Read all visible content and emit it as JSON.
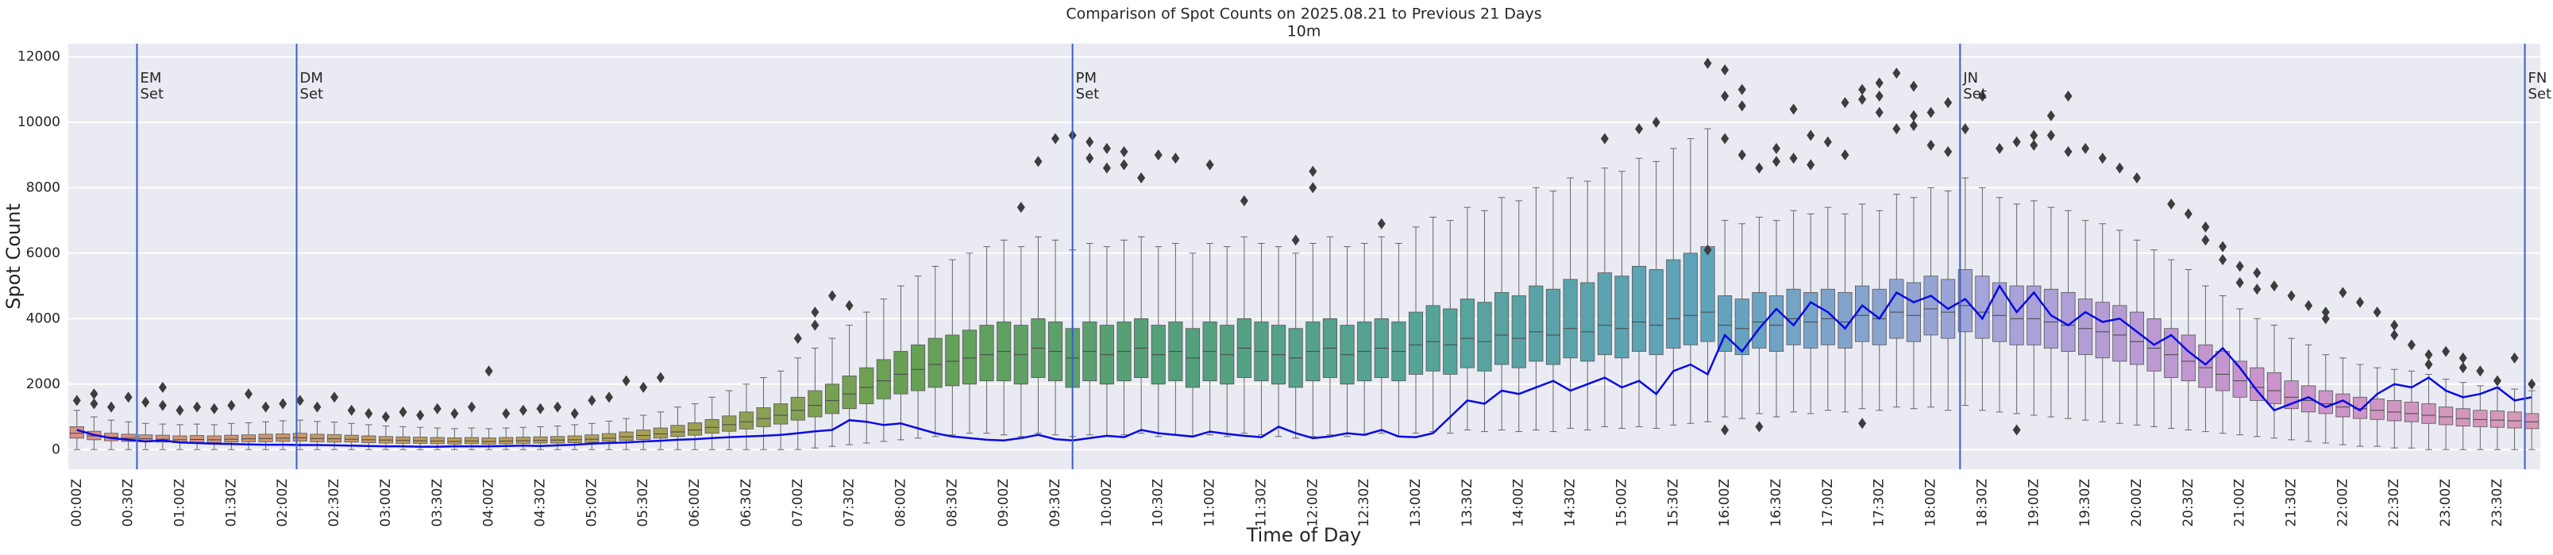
{
  "chart_data": {
    "type": "box",
    "title": "Comparison of Spot Counts on 2025.08.21 to Previous 21 Days",
    "subtitle": "10m",
    "x_label": "Time of Day",
    "y_label": "Spot Count",
    "ylim": [
      -600,
      12400
    ],
    "yticks": [
      0,
      2000,
      4000,
      6000,
      8000,
      10000,
      12000
    ],
    "grid": true,
    "categories": [
      "00:00Z",
      null,
      null,
      "00:30Z",
      null,
      null,
      "01:00Z",
      null,
      null,
      "01:30Z",
      null,
      null,
      "02:00Z",
      null,
      null,
      "02:30Z",
      null,
      null,
      "03:00Z",
      null,
      null,
      "03:30Z",
      null,
      null,
      "04:00Z",
      null,
      null,
      "04:30Z",
      null,
      null,
      "05:00Z",
      null,
      null,
      "05:30Z",
      null,
      null,
      "06:00Z",
      null,
      null,
      "06:30Z",
      null,
      null,
      "07:00Z",
      null,
      null,
      "07:30Z",
      null,
      null,
      "08:00Z",
      null,
      null,
      "08:30Z",
      null,
      null,
      "09:00Z",
      null,
      null,
      "09:30Z",
      null,
      null,
      "10:00Z",
      null,
      null,
      "10:30Z",
      null,
      null,
      "11:00Z",
      null,
      null,
      "11:30Z",
      null,
      null,
      "12:00Z",
      null,
      null,
      "12:30Z",
      null,
      null,
      "13:00Z",
      null,
      null,
      "13:30Z",
      null,
      null,
      "14:00Z",
      null,
      null,
      "14:30Z",
      null,
      null,
      "15:00Z",
      null,
      null,
      "15:30Z",
      null,
      null,
      "16:00Z",
      null,
      null,
      "16:30Z",
      null,
      null,
      "17:00Z",
      null,
      null,
      "17:30Z",
      null,
      null,
      "18:00Z",
      null,
      null,
      "18:30Z",
      null,
      null,
      "19:00Z",
      null,
      null,
      "19:30Z",
      null,
      null,
      "20:00Z",
      null,
      null,
      "20:30Z",
      null,
      null,
      "21:00Z",
      null,
      null,
      "21:30Z",
      null,
      null,
      "22:00Z",
      null,
      null,
      "22:30Z",
      null,
      null,
      "23:00Z",
      null,
      null,
      "23:30Z",
      null,
      null
    ],
    "palette": [
      "#d99088",
      "#c49a64",
      "#b0a055",
      "#68a152",
      "#54a07b",
      "#56a39a",
      "#60a3bd",
      "#a4a4da",
      "#c994cc",
      "#d798b8"
    ],
    "boxes": {
      "whislo": [
        0,
        0,
        0,
        0,
        0,
        0,
        0,
        0,
        0,
        0,
        0,
        0,
        0,
        0,
        0,
        0,
        0,
        0,
        0,
        0,
        0,
        0,
        0,
        0,
        0,
        0,
        0,
        0,
        0,
        0,
        0,
        0,
        0,
        0,
        0,
        0,
        0,
        0,
        0,
        0,
        0,
        0,
        0,
        50,
        100,
        150,
        200,
        250,
        300,
        350,
        400,
        450,
        500,
        500,
        450,
        400,
        500,
        450,
        400,
        450,
        400,
        450,
        500,
        400,
        450,
        400,
        450,
        400,
        500,
        450,
        400,
        350,
        400,
        450,
        400,
        450,
        500,
        400,
        500,
        550,
        500,
        600,
        550,
        600,
        550,
        600,
        550,
        650,
        600,
        700,
        650,
        700,
        650,
        750,
        800,
        850,
        1000,
        950,
        1100,
        1000,
        1150,
        1100,
        1200,
        1150,
        1250,
        1200,
        1300,
        1250,
        1300,
        1200,
        1350,
        1200,
        1150,
        1100,
        1050,
        1000,
        950,
        900,
        850,
        800,
        750,
        700,
        650,
        600,
        550,
        500,
        450,
        400,
        350,
        300,
        250,
        200,
        150,
        100,
        100,
        50,
        50,
        0,
        0,
        0,
        0,
        0,
        0,
        0
      ],
      "q1": [
        350,
        300,
        270,
        250,
        240,
        230,
        210,
        220,
        210,
        230,
        240,
        240,
        250,
        260,
        240,
        230,
        230,
        210,
        200,
        190,
        190,
        180,
        170,
        180,
        170,
        180,
        190,
        200,
        200,
        210,
        220,
        250,
        280,
        310,
        350,
        400,
        440,
        500,
        560,
        630,
        700,
        780,
        900,
        1000,
        1100,
        1250,
        1400,
        1550,
        1700,
        1800,
        1900,
        1950,
        2000,
        2100,
        2100,
        2000,
        2200,
        2100,
        1900,
        2100,
        2000,
        2100,
        2200,
        2000,
        2100,
        1900,
        2100,
        2000,
        2200,
        2100,
        2000,
        1900,
        2100,
        2200,
        2000,
        2100,
        2200,
        2100,
        2300,
        2400,
        2300,
        2500,
        2400,
        2600,
        2500,
        2700,
        2600,
        2800,
        2700,
        2900,
        2800,
        3000,
        2900,
        3100,
        3200,
        3300,
        3000,
        2900,
        3100,
        3000,
        3200,
        3100,
        3200,
        3100,
        3300,
        3200,
        3400,
        3300,
        3500,
        3400,
        3600,
        3400,
        3300,
        3200,
        3200,
        3100,
        3000,
        2900,
        2800,
        2700,
        2600,
        2400,
        2200,
        2100,
        1900,
        1800,
        1600,
        1500,
        1400,
        1250,
        1150,
        1100,
        1000,
        950,
        920,
        880,
        850,
        800,
        760,
        720,
        700,
        680,
        660,
        640
      ],
      "med": [
        500,
        420,
        380,
        350,
        330,
        320,
        300,
        310,
        300,
        320,
        330,
        340,
        350,
        360,
        340,
        330,
        320,
        300,
        290,
        280,
        270,
        260,
        250,
        260,
        250,
        260,
        270,
        280,
        290,
        300,
        320,
        350,
        390,
        430,
        480,
        540,
        600,
        680,
        760,
        850,
        950,
        1050,
        1200,
        1350,
        1500,
        1700,
        1900,
        2100,
        2300,
        2450,
        2600,
        2700,
        2800,
        2900,
        3000,
        2900,
        3100,
        3000,
        2800,
        3000,
        2900,
        3000,
        3100,
        2900,
        3000,
        2800,
        3000,
        2900,
        3100,
        3000,
        2900,
        2800,
        3000,
        3100,
        2900,
        3000,
        3100,
        3000,
        3200,
        3300,
        3200,
        3400,
        3300,
        3500,
        3400,
        3600,
        3500,
        3700,
        3600,
        3800,
        3700,
        3900,
        3800,
        4000,
        4100,
        4200,
        3800,
        3700,
        3900,
        3800,
        4000,
        3900,
        4000,
        3900,
        4100,
        4000,
        4200,
        4100,
        4300,
        4200,
        4400,
        4200,
        4100,
        4000,
        4000,
        3900,
        3800,
        3700,
        3600,
        3500,
        3300,
        3100,
        2900,
        2700,
        2500,
        2300,
        2100,
        1900,
        1800,
        1600,
        1500,
        1400,
        1300,
        1250,
        1200,
        1150,
        1100,
        1050,
        1000,
        950,
        920,
        900,
        880,
        850
      ],
      "q3": [
        700,
        560,
        500,
        470,
        450,
        440,
        420,
        430,
        420,
        440,
        450,
        470,
        480,
        500,
        470,
        460,
        440,
        420,
        400,
        390,
        380,
        370,
        360,
        370,
        360,
        370,
        380,
        390,
        400,
        420,
        450,
        490,
        540,
        600,
        660,
        740,
        820,
        920,
        1030,
        1150,
        1280,
        1400,
        1600,
        1800,
        2000,
        2250,
        2500,
        2750,
        3000,
        3200,
        3400,
        3500,
        3650,
        3800,
        3900,
        3800,
        4000,
        3900,
        3700,
        3900,
        3800,
        3900,
        4000,
        3800,
        3900,
        3700,
        3900,
        3800,
        4000,
        3900,
        3800,
        3700,
        3900,
        4000,
        3800,
        3900,
        4000,
        3900,
        4200,
        4400,
        4300,
        4600,
        4500,
        4800,
        4700,
        5000,
        4900,
        5200,
        5100,
        5400,
        5300,
        5600,
        5500,
        5800,
        6000,
        6200,
        4700,
        4600,
        4800,
        4700,
        4900,
        4800,
        4900,
        4800,
        5000,
        4900,
        5200,
        5100,
        5300,
        5200,
        5500,
        5300,
        5100,
        5000,
        5000,
        4900,
        4800,
        4600,
        4500,
        4400,
        4200,
        4000,
        3700,
        3500,
        3200,
        3000,
        2700,
        2500,
        2350,
        2100,
        1950,
        1800,
        1700,
        1600,
        1550,
        1500,
        1450,
        1400,
        1300,
        1250,
        1200,
        1180,
        1150,
        1100
      ],
      "whishi": [
        1200,
        1000,
        900,
        850,
        800,
        780,
        760,
        780,
        760,
        800,
        820,
        850,
        880,
        900,
        860,
        840,
        800,
        760,
        720,
        700,
        680,
        660,
        640,
        660,
        640,
        660,
        680,
        700,
        720,
        760,
        800,
        870,
        950,
        1050,
        1150,
        1300,
        1400,
        1600,
        1800,
        2000,
        2200,
        2400,
        2800,
        3100,
        3400,
        3800,
        4200,
        4600,
        5000,
        5300,
        5600,
        5800,
        6000,
        6200,
        6400,
        6200,
        6500,
        6400,
        6100,
        6300,
        6200,
        6400,
        6500,
        6200,
        6300,
        6000,
        6300,
        6200,
        6500,
        6300,
        6200,
        6000,
        6300,
        6500,
        6200,
        6300,
        6500,
        6300,
        6800,
        7100,
        7000,
        7400,
        7300,
        7700,
        7600,
        8000,
        7900,
        8300,
        8200,
        8600,
        8500,
        8900,
        8800,
        9200,
        9500,
        9800,
        7000,
        6900,
        7100,
        7000,
        7300,
        7200,
        7400,
        7200,
        7500,
        7300,
        7800,
        7700,
        8000,
        7900,
        8300,
        8000,
        7700,
        7500,
        7600,
        7400,
        7300,
        7000,
        6900,
        6700,
        6400,
        6100,
        5800,
        5500,
        5000,
        4700,
        4300,
        4000,
        3800,
        3400,
        3200,
        2900,
        2800,
        2600,
        2500,
        2450,
        2400,
        2300,
        2150,
        2050,
        1950,
        1900,
        1850,
        1800
      ],
      "fliers": [
        [
          1500
        ],
        [
          1400,
          1700
        ],
        [
          1300
        ],
        [
          1600
        ],
        [
          1450
        ],
        [
          1350,
          1900
        ],
        [
          1200
        ],
        [
          1300
        ],
        [
          1250
        ],
        [
          1350
        ],
        [
          1700
        ],
        [
          1300
        ],
        [
          1400
        ],
        [
          1500
        ],
        [
          1300
        ],
        [
          1600
        ],
        [
          1200
        ],
        [
          1100
        ],
        [
          1000
        ],
        [
          1150
        ],
        [
          1050
        ],
        [
          1250
        ],
        [
          1100
        ],
        [
          1300
        ],
        [
          2400
        ],
        [
          1100
        ],
        [
          1200
        ],
        [
          1250
        ],
        [
          1300
        ],
        [
          1100
        ],
        [
          1500
        ],
        [
          1600
        ],
        [
          2100
        ],
        [
          1900
        ],
        [
          2200
        ],
        [],
        [],
        [],
        [],
        [],
        [],
        [],
        [
          3400
        ],
        [
          3800,
          4200
        ],
        [
          4700
        ],
        [
          4400
        ],
        [],
        [],
        [],
        [],
        [],
        [],
        [],
        [],
        [],
        [
          7400
        ],
        [
          8800
        ],
        [
          9500
        ],
        [
          9600
        ],
        [
          9400,
          8900
        ],
        [
          8600,
          9200
        ],
        [
          8700,
          9100
        ],
        [
          8300
        ],
        [
          9000
        ],
        [
          8900
        ],
        [],
        [
          8700
        ],
        [],
        [
          7600
        ],
        [],
        [],
        [
          6400
        ],
        [
          8000,
          8500
        ],
        [],
        [],
        [],
        [
          6900
        ],
        [],
        [],
        [],
        [],
        [],
        [],
        [],
        [],
        [],
        [],
        [],
        [],
        [
          9500
        ],
        [],
        [
          9800
        ],
        [
          10000
        ],
        [],
        [],
        [
          11800,
          6100
        ],
        [
          11600,
          10800,
          9500,
          600
        ],
        [
          11000,
          10500,
          9000
        ],
        [
          8600,
          700
        ],
        [
          9200,
          8800
        ],
        [
          10400,
          8900
        ],
        [
          9600,
          8700
        ],
        [
          9400
        ],
        [
          10600,
          9000
        ],
        [
          11000,
          10700,
          800
        ],
        [
          11200,
          10800,
          10300
        ],
        [
          11500,
          9800
        ],
        [
          11100,
          10200,
          9900
        ],
        [
          10300,
          9300
        ],
        [
          10600,
          9100
        ],
        [
          9800
        ],
        [
          10800
        ],
        [
          9200
        ],
        [
          9400,
          600
        ],
        [
          9600,
          9300
        ],
        [
          10200,
          9600
        ],
        [
          10800,
          9100
        ],
        [
          9200
        ],
        [
          8900
        ],
        [
          8600
        ],
        [
          8300
        ],
        [],
        [
          7500
        ],
        [
          7200
        ],
        [
          6800,
          6400
        ],
        [
          6200,
          5800
        ],
        [
          5600,
          5100
        ],
        [
          5400,
          4900
        ],
        [
          5000
        ],
        [
          4700
        ],
        [
          4400
        ],
        [
          4000,
          4200
        ],
        [
          4800
        ],
        [
          4500
        ],
        [
          4200
        ],
        [
          3800,
          3500
        ],
        [
          3200
        ],
        [
          2900,
          2600
        ],
        [
          3000
        ],
        [
          2800,
          2500
        ],
        [
          2400
        ],
        [
          2100
        ],
        [
          2800
        ],
        [
          2000
        ]
      ]
    },
    "line": {
      "color": "#0a0ae6",
      "values": [
        600,
        450,
        350,
        300,
        250,
        280,
        220,
        200,
        180,
        170,
        160,
        150,
        150,
        140,
        140,
        130,
        120,
        110,
        100,
        100,
        90,
        90,
        100,
        100,
        100,
        110,
        120,
        110,
        130,
        150,
        180,
        200,
        220,
        250,
        270,
        300,
        320,
        350,
        380,
        400,
        420,
        450,
        500,
        560,
        600,
        900,
        850,
        750,
        800,
        650,
        500,
        400,
        350,
        300,
        280,
        350,
        450,
        320,
        280,
        350,
        420,
        380,
        600,
        500,
        450,
        400,
        550,
        480,
        420,
        380,
        700,
        500,
        350,
        400,
        500,
        450,
        600,
        400,
        380,
        500,
        1000,
        1500,
        1400,
        1800,
        1700,
        1900,
        2100,
        1800,
        2000,
        2200,
        1900,
        2100,
        1700,
        2400,
        2600,
        2300,
        3500,
        3000,
        3700,
        4300,
        3800,
        4500,
        4200,
        3700,
        4400,
        4000,
        4800,
        4500,
        4700,
        4300,
        4600,
        4000,
        5000,
        4200,
        4800,
        4100,
        3800,
        4200,
        3900,
        4000,
        3600,
        3200,
        3500,
        3000,
        2600,
        3100,
        2500,
        1800,
        1200,
        1400,
        1600,
        1300,
        1500,
        1200,
        1700,
        2000,
        1900,
        2200,
        1800,
        1600,
        1700,
        1900,
        1500,
        1600
      ]
    },
    "annotation_color": "#3a5fc8",
    "annotations": [
      {
        "text": [
          "EM",
          "Set"
        ],
        "x": 3.5
      },
      {
        "text": [
          "DM",
          "Set"
        ],
        "x": 12.8
      },
      {
        "text": [
          "PM",
          "Set"
        ],
        "x": 58.0
      },
      {
        "text": [
          "JN",
          "Set"
        ],
        "x": 109.7
      },
      {
        "text": [
          "FN",
          "Set"
        ],
        "x": 142.6
      }
    ]
  }
}
